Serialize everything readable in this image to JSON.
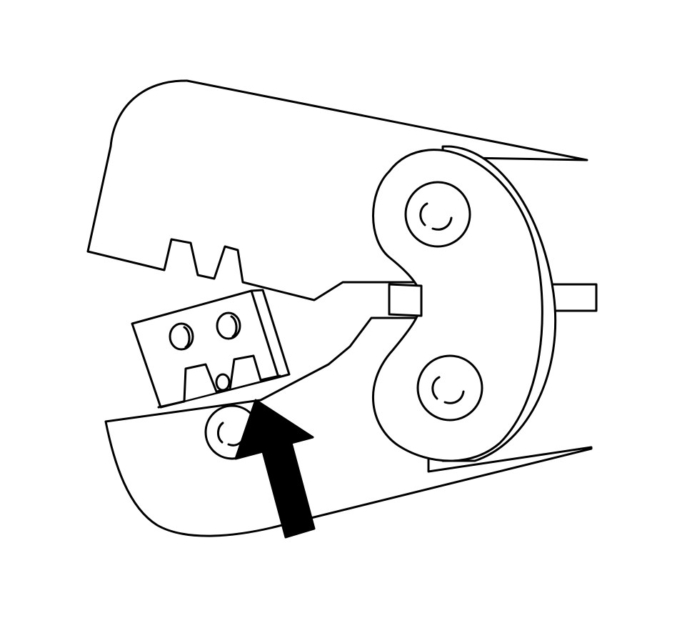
{
  "figure": {
    "subject": "crimping-tool-jaws",
    "background_color": "#ffffff",
    "line_color": "#000000",
    "arrow_color": "#000000",
    "icons": [
      "crimper-upper-jaw",
      "crimper-lower-jaw",
      "die-insert",
      "pivot-link-plate",
      "pivot-screw",
      "arrow-up-icon"
    ]
  }
}
